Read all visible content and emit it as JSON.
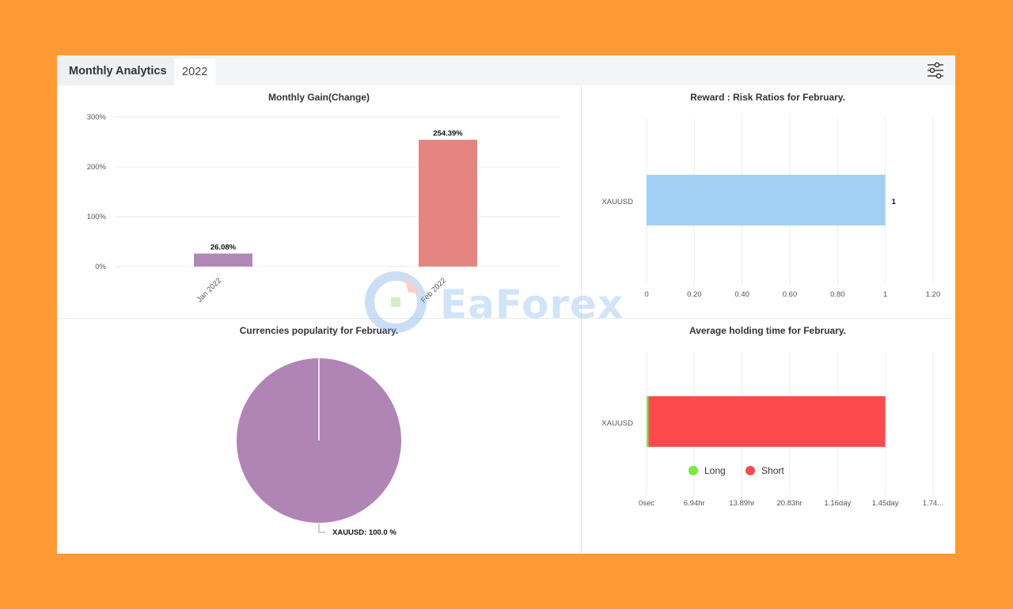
{
  "header": {
    "title": "Monthly Analytics",
    "year_tab": "2022"
  },
  "watermark": {
    "text": "EaForex"
  },
  "colors": {
    "background": "#ff9a35",
    "jan_bar": "#b088b5",
    "feb_bar": "#e48582",
    "risk_bar": "#a2d0f4",
    "pie": "#b085b5",
    "long": "#7ae83f",
    "short": "#ff4a4d"
  },
  "charts": {
    "gain": {
      "title": "Monthly Gain(Change)",
      "chart_data": {
        "type": "bar",
        "categories": [
          "Jan 2022",
          "Feb 2022"
        ],
        "values": [
          26.08,
          254.39
        ],
        "data_labels": [
          "26.08%",
          "254.39%"
        ],
        "ytick_labels": [
          "300%",
          "200%",
          "100%",
          "0%"
        ],
        "ylim": [
          0,
          300
        ],
        "grid": true
      }
    },
    "risk": {
      "title": "Reward : Risk Ratios for February.",
      "chart_data": {
        "type": "bar",
        "orientation": "horizontal",
        "categories": [
          "XAUUSD"
        ],
        "values": [
          1
        ],
        "data_labels": [
          "1"
        ],
        "xtick_labels": [
          "0",
          "0.20",
          "0.40",
          "0.60",
          "0.80",
          "1",
          "1.20"
        ],
        "xlim": [
          0,
          1.2
        ],
        "grid": true
      }
    },
    "popularity": {
      "title": "Currencies popularity for February.",
      "chart_data": {
        "type": "pie",
        "slices": [
          {
            "label": "XAUUSD: 100.0 %",
            "value": 100.0
          }
        ]
      }
    },
    "holding": {
      "title": "Average holding time for February.",
      "chart_data": {
        "type": "bar",
        "orientation": "horizontal",
        "stacked": true,
        "categories": [
          "XAUUSD"
        ],
        "series": [
          {
            "name": "Long",
            "values": [
              0.012
            ]
          },
          {
            "name": "Short",
            "values": [
              1.438
            ]
          }
        ],
        "unit": "day",
        "xtick_labels": [
          "0sec",
          "6.94hr",
          "13.89hr",
          "20.83hr",
          "1.16day",
          "1.45day",
          "1.74..."
        ],
        "xlim": [
          0,
          1.74
        ],
        "legend": "bottom",
        "grid": true
      }
    }
  }
}
